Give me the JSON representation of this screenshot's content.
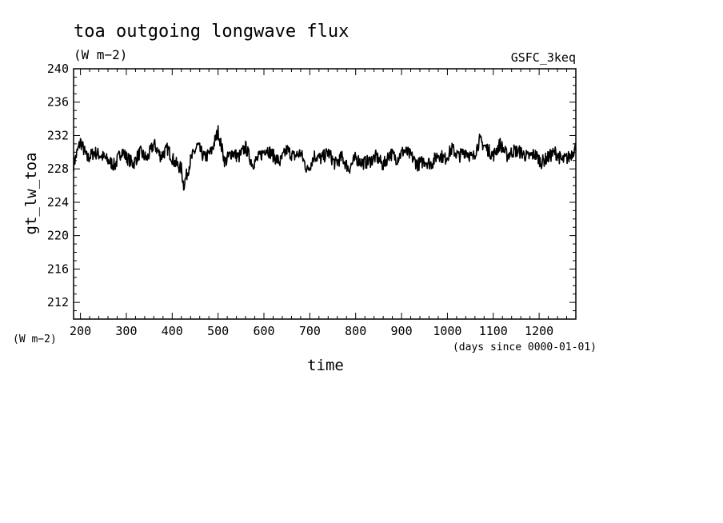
{
  "chart_data": {
    "type": "line",
    "title": "toa outgoing longwave flux",
    "title_units": "(W m−2)",
    "dataset": "GSFC_3keq",
    "ylabel": "gt_lw_toa",
    "ylabel_units": "(W m−2)",
    "xlabel": "time",
    "xlabel_units": "(days since 0000-01-01)",
    "xlim": [
      185,
      1280
    ],
    "ylim": [
      210,
      240
    ],
    "xticks": [
      "200",
      "300",
      "400",
      "500",
      "600",
      "700",
      "800",
      "900",
      "1000",
      "1100",
      "1200"
    ],
    "yticks": [
      "212",
      "216",
      "220",
      "224",
      "228",
      "232",
      "236",
      "240"
    ],
    "grid": false,
    "line_color": "#000000",
    "series": [
      {
        "x": [
          185,
          200,
          215,
          230,
          245,
          260,
          275,
          290,
          300,
          315,
          330,
          345,
          360,
          375,
          390,
          405,
          420,
          425,
          440,
          455,
          470,
          485,
          500,
          515,
          530,
          545,
          560,
          575,
          590,
          605,
          620,
          635,
          650,
          665,
          680,
          695,
          710,
          725,
          740,
          755,
          770,
          785,
          800,
          815,
          830,
          845,
          860,
          875,
          890,
          905,
          920,
          935,
          950,
          965,
          980,
          995,
          1010,
          1025,
          1040,
          1055,
          1070,
          1085,
          1100,
          1115,
          1130,
          1145,
          1160,
          1175,
          1190,
          1205,
          1220,
          1235,
          1250,
          1265,
          1280
        ],
        "y": [
          228.5,
          231.3,
          229.2,
          230.0,
          229.6,
          229.0,
          228.4,
          230.2,
          229.4,
          228.6,
          230.0,
          229.2,
          231.0,
          229.5,
          230.4,
          228.8,
          228.0,
          226.0,
          229.0,
          230.8,
          229.3,
          230.0,
          232.5,
          228.8,
          230.0,
          229.4,
          230.6,
          228.6,
          229.4,
          230.5,
          229.6,
          228.8,
          230.3,
          229.5,
          229.9,
          227.8,
          229.6,
          229.2,
          230.0,
          228.6,
          229.4,
          228.0,
          229.3,
          228.7,
          228.9,
          229.5,
          228.4,
          229.9,
          229.2,
          230.2,
          229.6,
          228.5,
          229.0,
          228.6,
          229.8,
          229.2,
          230.4,
          229.5,
          230.2,
          229.2,
          231.4,
          230.5,
          229.6,
          231.0,
          229.6,
          230.2,
          230.0,
          229.4,
          229.8,
          228.8,
          229.4,
          230.0,
          229.0,
          229.4,
          230.6
        ]
      }
    ]
  }
}
